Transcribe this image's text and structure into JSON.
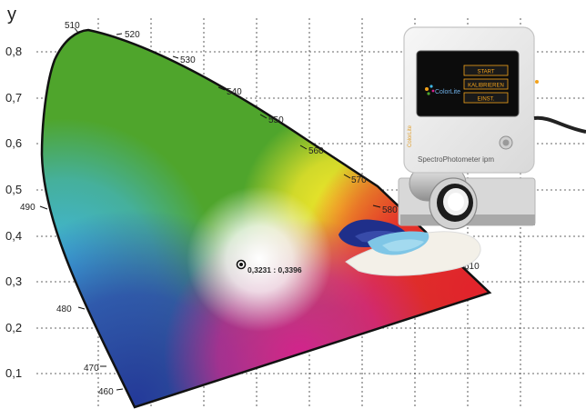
{
  "diagram": {
    "y_axis_label": "y",
    "y_ticks": [
      "0,8",
      "0,7",
      "0,6",
      "0,5",
      "0,4",
      "0,3",
      "0,2",
      "0,1"
    ],
    "wavelength_labels": [
      "510",
      "520",
      "530",
      "540",
      "550",
      "560",
      "570",
      "580",
      "610",
      "490",
      "480",
      "470",
      "460"
    ],
    "measured_point": {
      "label": "0,3231 : 0,3396",
      "x": 0.3231,
      "y": 0.3396,
      "color": "#111111"
    },
    "region_colors": {
      "green": "#4fa52c",
      "yellow": "#f1e62a",
      "red": "#e2232b",
      "magenta": "#d3238c",
      "blue": "#2c4aa8",
      "cyan": "#3fb7e6",
      "white": "#ffffff"
    }
  },
  "device": {
    "name": "SpectroPhotometer ipm",
    "brand": "ColorLite",
    "side_label": "ColorLite",
    "screen_buttons": [
      "START",
      "KALIBRIEREN",
      "EINST."
    ],
    "screen_colors": {
      "screen": "#0c0c0c",
      "accent": "#f2a21a"
    }
  }
}
